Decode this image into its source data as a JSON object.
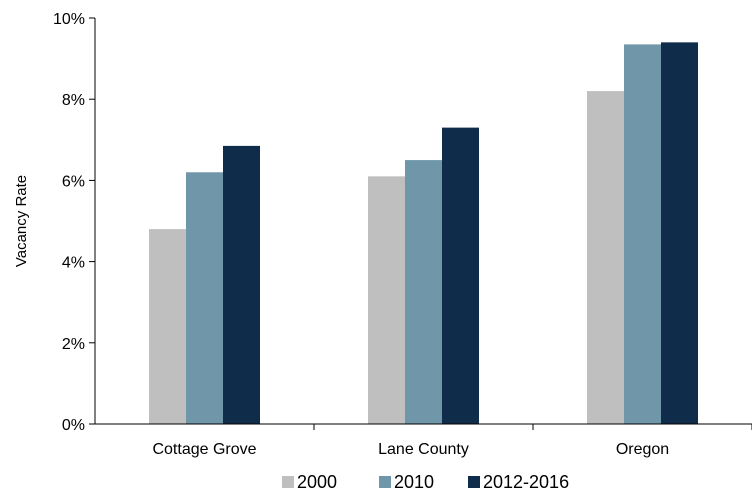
{
  "chart_data": {
    "type": "bar",
    "title": "",
    "xlabel": "",
    "ylabel": "Vacancy Rate",
    "categories": [
      "Cottage Grove",
      "Lane County",
      "Oregon"
    ],
    "series": [
      {
        "name": "2000",
        "values": [
          4.8,
          6.1,
          8.2
        ],
        "color": "#bfbfbf"
      },
      {
        "name": "2010",
        "values": [
          6.2,
          6.5,
          9.35
        ],
        "color": "#6f96a9"
      },
      {
        "name": "2012-2016",
        "values": [
          6.85,
          7.3,
          9.4
        ],
        "color": "#0f2d4a"
      }
    ],
    "ylim": [
      0,
      10
    ],
    "yticks": [
      0,
      2,
      4,
      6,
      8,
      10
    ],
    "ytick_labels": [
      "0%",
      "2%",
      "4%",
      "6%",
      "8%",
      "10%"
    ],
    "grid": false,
    "legend_position": "bottom"
  }
}
